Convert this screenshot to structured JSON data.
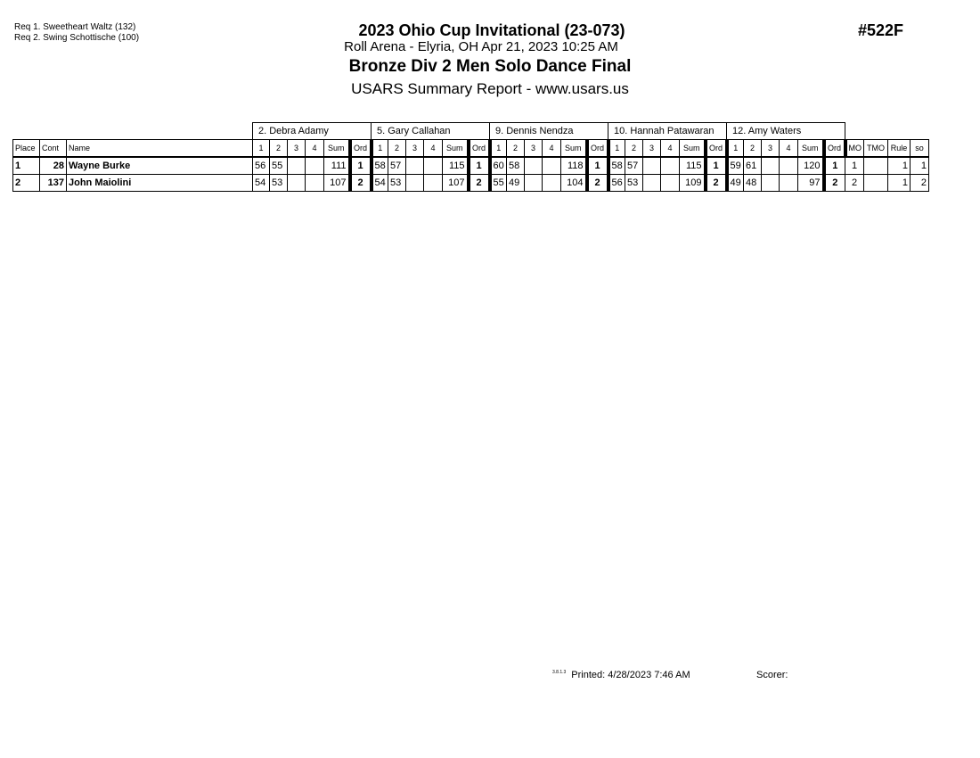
{
  "requirements": [
    "Req  1.  Sweetheart Waltz (132)",
    "Req  2.  Swing Schottische (100)"
  ],
  "header": {
    "title": "2023 Ohio Cup Invitational (23-073)",
    "venue": "Roll Arena - Elyria, OH  Apr 21, 2023  10:25 AM",
    "event": "Bronze Div 2 Men Solo Dance Final",
    "report": "USARS Summary Report - www.usars.us",
    "event_number": "#522F"
  },
  "table": {
    "judges": [
      "2.  Debra Adamy",
      "5.  Gary Callahan",
      "9.  Dennis Nendza",
      "10.  Hannah Patawaran",
      "12.  Amy Waters"
    ],
    "columns": {
      "place": "Place",
      "cont": "Cont",
      "name": "Name",
      "judge_cols": [
        "1",
        "2",
        "3",
        "4",
        "Sum",
        "Ord"
      ],
      "mo": "MO",
      "tmo": "TMO",
      "rule": "Rule",
      "so": "so"
    },
    "rows": [
      {
        "place": "1",
        "cont": "28",
        "name": "Wayne Burke",
        "scores": [
          [
            "56",
            "55",
            "",
            "",
            "111",
            "1"
          ],
          [
            "58",
            "57",
            "",
            "",
            "115",
            "1"
          ],
          [
            "60",
            "58",
            "",
            "",
            "118",
            "1"
          ],
          [
            "58",
            "57",
            "",
            "",
            "115",
            "1"
          ],
          [
            "59",
            "61",
            "",
            "",
            "120",
            "1"
          ]
        ],
        "mo": "1",
        "tmo": "",
        "rule": "1",
        "so": "1"
      },
      {
        "place": "2",
        "cont": "137",
        "name": "John Maiolini",
        "scores": [
          [
            "54",
            "53",
            "",
            "",
            "107",
            "2"
          ],
          [
            "54",
            "53",
            "",
            "",
            "107",
            "2"
          ],
          [
            "55",
            "49",
            "",
            "",
            "104",
            "2"
          ],
          [
            "56",
            "53",
            "",
            "",
            "109",
            "2"
          ],
          [
            "49",
            "48",
            "",
            "",
            "97",
            "2"
          ]
        ],
        "mo": "2",
        "tmo": "",
        "rule": "1",
        "so": "2"
      }
    ]
  },
  "footer": {
    "version": "3.8.1.3",
    "printed": "Printed:  4/28/2023  7:46 AM",
    "scorer": "Scorer:"
  }
}
